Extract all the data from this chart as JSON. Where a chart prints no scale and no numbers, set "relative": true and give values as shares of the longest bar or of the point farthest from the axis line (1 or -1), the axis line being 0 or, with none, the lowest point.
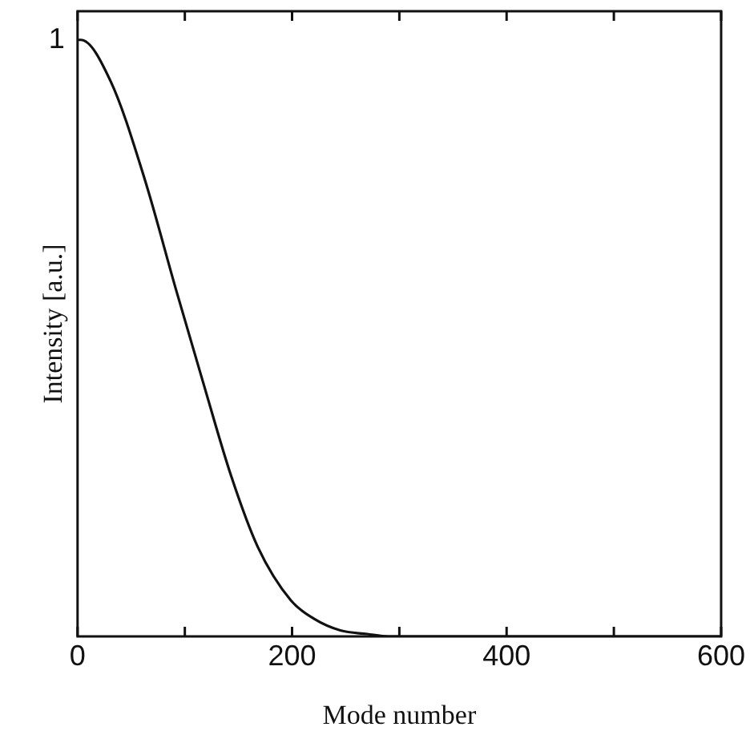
{
  "chart_data": {
    "type": "line",
    "xlabel": "Mode number",
    "ylabel": "Intensity [a.u.]",
    "relative": true,
    "x": [
      0,
      3,
      31,
      62,
      92,
      118,
      143,
      168,
      199,
      220,
      245,
      270,
      290,
      350,
      450,
      600
    ],
    "series": [
      {
        "color": "#111111",
        "values": [
          1,
          1,
          0.93,
          0.77,
          0.58,
          0.42,
          0.27,
          0.15,
          0.06,
          0.03,
          0.01,
          0.004,
          0,
          0,
          0,
          0
        ]
      }
    ],
    "xlim": [
      0,
      600
    ],
    "xticks": [
      0,
      {
        "value": 100,
        "label": null
      },
      200,
      {
        "value": 300,
        "label": null
      },
      400,
      {
        "value": 500,
        "label": null
      },
      600
    ],
    "annotations": [
      "1"
    ],
    "grid": false,
    "legend": false,
    "marker": "none",
    "line_style": "solid"
  }
}
